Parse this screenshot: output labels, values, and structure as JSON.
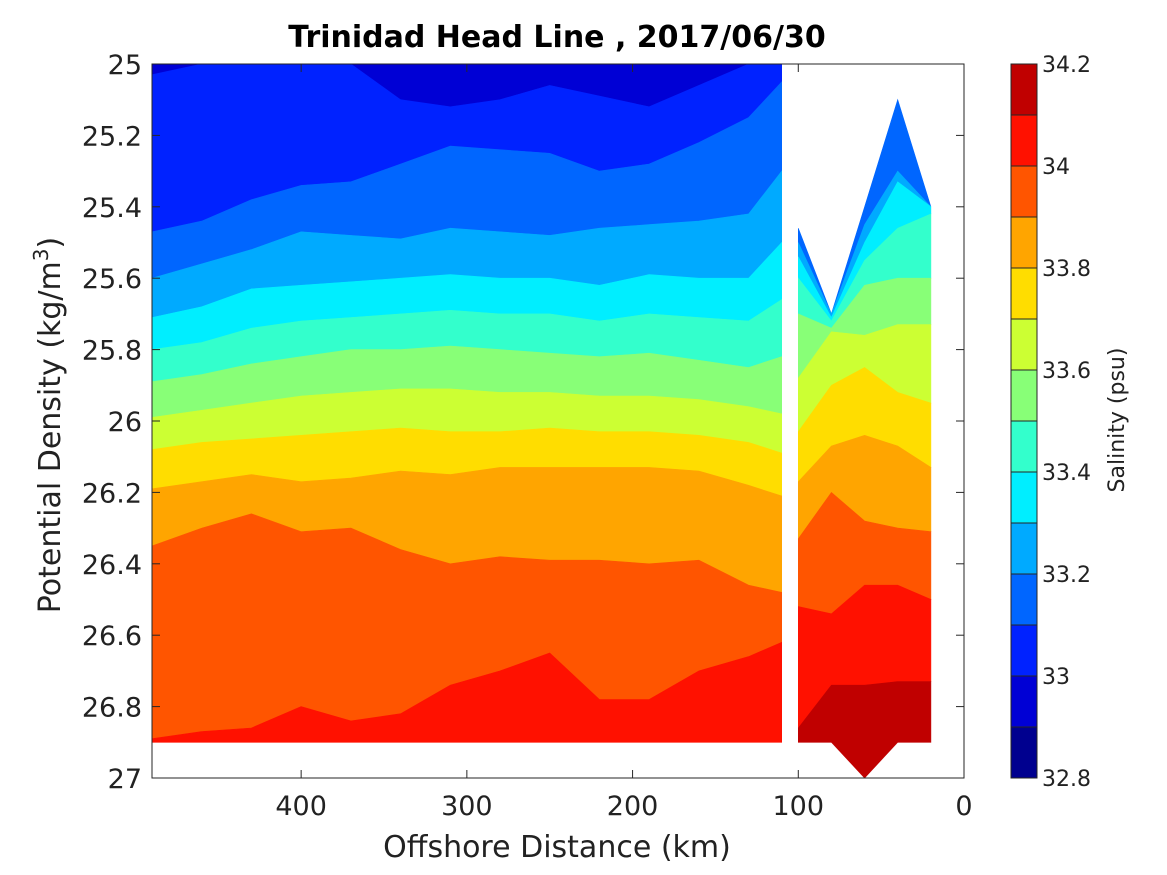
{
  "chart_data": {
    "type": "heatmap",
    "subtype": "filled-contour",
    "title": "Trinidad Head Line , 2017/06/30",
    "xlabel": "Offshore Distance (km)",
    "ylabel": "Potential Density (kg/m",
    "ylabel_sup": "3",
    "ylabel_suffix": ")",
    "colorbar_label": "Salinity (psu)",
    "xlim": [
      490,
      0
    ],
    "ylim": [
      25.0,
      27.0
    ],
    "y_reversed": true,
    "x_ticks": [
      400,
      300,
      200,
      100,
      0
    ],
    "x_tick_labels": [
      "400",
      "300",
      "200",
      "100",
      "0"
    ],
    "y_ticks": [
      25,
      25.2,
      25.4,
      25.6,
      25.8,
      26,
      26.2,
      26.4,
      26.6,
      26.8,
      27
    ],
    "y_tick_labels": [
      "25",
      "25.2",
      "25.4",
      "25.6",
      "25.8",
      "26",
      "26.2",
      "26.4",
      "26.6",
      "26.8",
      "27"
    ],
    "colorbar_ticks": [
      "32.8",
      "33",
      "33.2",
      "33.4",
      "33.6",
      "33.8",
      "34",
      "34.2"
    ],
    "colorbar_tick_values": [
      32.8,
      33.0,
      33.2,
      33.4,
      33.6,
      33.8,
      34.0,
      34.2
    ],
    "colorbar_range": [
      32.8,
      34.2
    ],
    "levels": [
      32.8,
      32.9,
      33.0,
      33.1,
      33.2,
      33.3,
      33.4,
      33.5,
      33.6,
      33.7,
      33.8,
      33.9,
      34.0,
      34.1,
      34.2
    ],
    "level_colors": [
      "#00008f",
      "#0000d5",
      "#0022ff",
      "#0066ff",
      "#00aaff",
      "#00eeff",
      "#33ffcc",
      "#88ff77",
      "#ccff33",
      "#ffdd00",
      "#ffa500",
      "#ff5500",
      "#ff1100",
      "#c00000"
    ],
    "x": [
      480,
      450,
      420,
      390,
      360,
      330,
      300,
      270,
      240,
      210,
      180,
      150,
      120,
      100,
      80,
      60,
      40,
      20
    ],
    "sections": [
      {
        "name": "offshore",
        "x": [
          490,
          460,
          430,
          400,
          370,
          340,
          310,
          280,
          250,
          220,
          190,
          160,
          130,
          110
        ],
        "contours": [
          {
            "level": 33.0,
            "y": [
              25.03,
              25.0,
              25.0,
              25.0,
              25.0,
              25.1,
              25.12,
              25.1,
              25.06,
              25.09,
              25.12,
              25.06,
              25.0,
              25.0
            ]
          },
          {
            "level": 33.1,
            "y": [
              25.47,
              25.44,
              25.38,
              25.34,
              25.33,
              25.28,
              25.23,
              25.24,
              25.25,
              25.3,
              25.28,
              25.22,
              25.15,
              25.05
            ]
          },
          {
            "level": 33.2,
            "y": [
              25.6,
              25.56,
              25.52,
              25.47,
              25.48,
              25.49,
              25.46,
              25.47,
              25.48,
              25.46,
              25.45,
              25.44,
              25.42,
              25.3
            ]
          },
          {
            "level": 33.3,
            "y": [
              25.71,
              25.68,
              25.63,
              25.62,
              25.61,
              25.6,
              25.59,
              25.6,
              25.6,
              25.62,
              25.59,
              25.6,
              25.6,
              25.5
            ]
          },
          {
            "level": 33.4,
            "y": [
              25.8,
              25.78,
              25.74,
              25.72,
              25.71,
              25.7,
              25.69,
              25.7,
              25.7,
              25.72,
              25.7,
              25.71,
              25.72,
              25.66
            ]
          },
          {
            "level": 33.5,
            "y": [
              25.89,
              25.87,
              25.84,
              25.82,
              25.8,
              25.8,
              25.79,
              25.8,
              25.81,
              25.82,
              25.81,
              25.83,
              25.85,
              25.82
            ]
          },
          {
            "level": 33.6,
            "y": [
              25.99,
              25.97,
              25.95,
              25.93,
              25.92,
              25.91,
              25.91,
              25.92,
              25.92,
              25.93,
              25.93,
              25.94,
              25.96,
              25.98
            ]
          },
          {
            "level": 33.7,
            "y": [
              26.08,
              26.06,
              26.05,
              26.04,
              26.03,
              26.02,
              26.03,
              26.03,
              26.02,
              26.03,
              26.03,
              26.04,
              26.06,
              26.09
            ]
          },
          {
            "level": 33.8,
            "y": [
              26.19,
              26.17,
              26.15,
              26.17,
              26.16,
              26.14,
              26.15,
              26.13,
              26.13,
              26.13,
              26.13,
              26.14,
              26.18,
              26.21
            ]
          },
          {
            "level": 33.9,
            "y": [
              26.35,
              26.3,
              26.26,
              26.31,
              26.3,
              26.36,
              26.4,
              26.38,
              26.39,
              26.39,
              26.4,
              26.39,
              26.46,
              26.48
            ]
          },
          {
            "level": 34.0,
            "y": [
              26.89,
              26.87,
              26.86,
              26.8,
              26.84,
              26.82,
              26.74,
              26.7,
              26.65,
              26.78,
              26.78,
              26.7,
              26.66,
              26.62
            ]
          }
        ],
        "bottom": 26.9
      },
      {
        "name": "nearshore",
        "x": [
          100,
          80,
          60,
          40,
          20
        ],
        "top": [
          25.46,
          25.7,
          25.4,
          25.1,
          25.4
        ],
        "contours": [
          {
            "level": 33.2,
            "y": [
              25.5,
              25.7,
              25.45,
              25.3,
              25.4
            ]
          },
          {
            "level": 33.3,
            "y": [
              25.54,
              25.71,
              25.5,
              25.33,
              25.4
            ]
          },
          {
            "level": 33.4,
            "y": [
              25.6,
              25.72,
              25.55,
              25.46,
              25.42
            ]
          },
          {
            "level": 33.5,
            "y": [
              25.7,
              25.74,
              25.62,
              25.6,
              25.6
            ]
          },
          {
            "level": 33.6,
            "y": [
              25.88,
              25.75,
              25.76,
              25.73,
              25.73
            ]
          },
          {
            "level": 33.7,
            "y": [
              26.03,
              25.9,
              25.85,
              25.92,
              25.95
            ]
          },
          {
            "level": 33.8,
            "y": [
              26.17,
              26.07,
              26.04,
              26.07,
              26.13
            ]
          },
          {
            "level": 33.9,
            "y": [
              26.33,
              26.2,
              26.28,
              26.3,
              26.31
            ]
          },
          {
            "level": 34.0,
            "y": [
              26.52,
              26.54,
              26.46,
              26.46,
              26.5
            ]
          },
          {
            "level": 34.1,
            "y": [
              26.86,
              26.74,
              26.74,
              26.73,
              26.73
            ]
          }
        ],
        "bottom": [
          26.9,
          26.9,
          27.0,
          26.9,
          26.9
        ]
      }
    ],
    "legend": "colorbar-right",
    "grid": false
  }
}
